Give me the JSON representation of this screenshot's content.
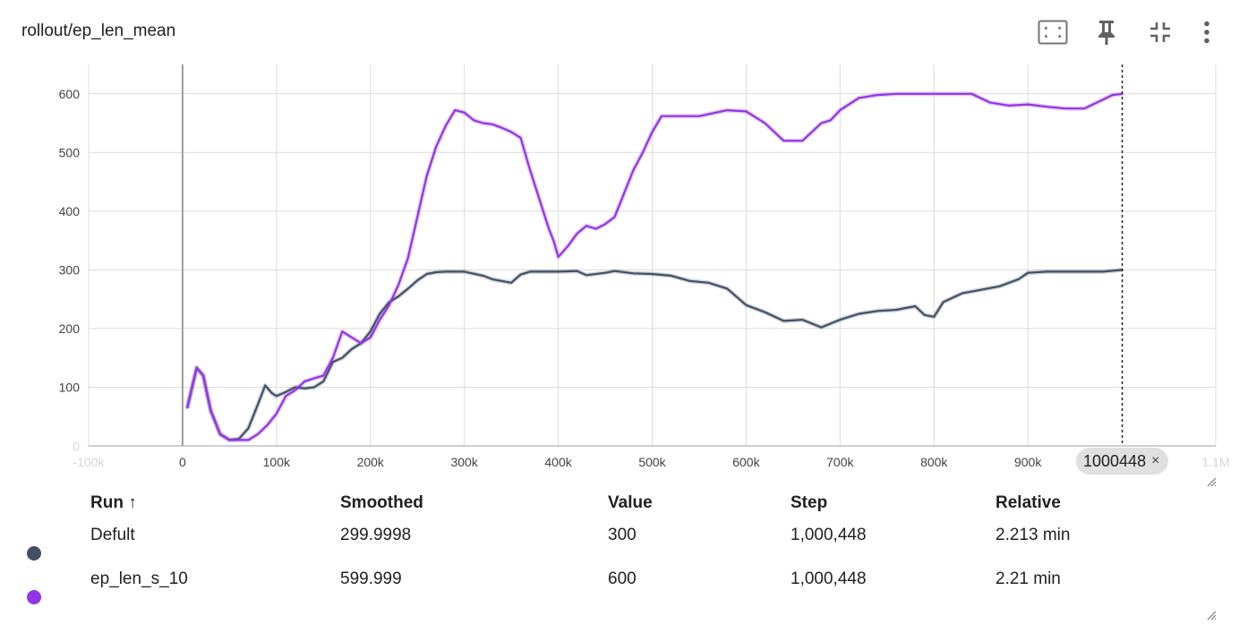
{
  "card": {
    "title": "rollout/ep_len_mean",
    "toolbar": [
      {
        "name": "fit-domain-icon"
      },
      {
        "name": "pin-icon"
      },
      {
        "name": "collapse-icon"
      },
      {
        "name": "more-vert-icon"
      }
    ]
  },
  "step_chip": {
    "label": "1000448",
    "close": "×"
  },
  "table": {
    "headers": {
      "run": "Run ↑",
      "smoothed": "Smoothed",
      "value": "Value",
      "step": "Step",
      "relative": "Relative"
    },
    "rows": [
      {
        "run": "Defult",
        "smoothed": "299.9998",
        "value": "300",
        "step": "1,000,448",
        "relative": "2.213 min",
        "color": "#425066"
      },
      {
        "run": "ep_len_s_10",
        "smoothed": "599.999",
        "value": "600",
        "step": "1,000,448",
        "relative": "2.21 min",
        "color": "#9334e6"
      }
    ]
  },
  "chart_data": {
    "type": "line",
    "title": "rollout/ep_len_mean",
    "xlabel": "",
    "ylabel": "",
    "xlim": [
      -100000,
      1100000
    ],
    "ylim": [
      0,
      650
    ],
    "grid": true,
    "x_ticks": [
      0,
      100000,
      200000,
      300000,
      400000,
      500000,
      600000,
      700000,
      800000,
      900000
    ],
    "x_tick_labels": [
      "0",
      "100k",
      "200k",
      "300k",
      "400k",
      "500k",
      "600k",
      "700k",
      "800k",
      "900k"
    ],
    "x_tick_faint": [
      {
        "value": -100000,
        "label": "-100k"
      },
      {
        "value": 1100000,
        "label": "1.1M"
      }
    ],
    "y_ticks": [
      100,
      200,
      300,
      400,
      500,
      600
    ],
    "y_tick_labels": [
      "100",
      "200",
      "300",
      "400",
      "500",
      "600"
    ],
    "y_tick_faint": [
      {
        "value": 0,
        "label": "0"
      }
    ],
    "cursor_step": 1000448,
    "series": [
      {
        "name": "Defult",
        "color": "#425066",
        "x": [
          5000,
          15000,
          22000,
          30000,
          40000,
          50000,
          60000,
          70000,
          80000,
          88000,
          95000,
          100000,
          110000,
          120000,
          130000,
          140000,
          150000,
          160000,
          170000,
          180000,
          190000,
          200000,
          210000,
          220000,
          230000,
          240000,
          250000,
          260000,
          270000,
          280000,
          290000,
          300000,
          320000,
          330000,
          350000,
          360000,
          370000,
          380000,
          400000,
          420000,
          430000,
          450000,
          460000,
          480000,
          500000,
          520000,
          540000,
          560000,
          580000,
          600000,
          620000,
          640000,
          660000,
          680000,
          700000,
          720000,
          740000,
          760000,
          780000,
          790000,
          800000,
          810000,
          830000,
          850000,
          870000,
          890000,
          900000,
          920000,
          940000,
          960000,
          980000,
          1000448
        ],
        "values": [
          65,
          133,
          120,
          60,
          20,
          10,
          12,
          30,
          70,
          103,
          90,
          85,
          92,
          100,
          98,
          100,
          110,
          143,
          150,
          165,
          175,
          195,
          225,
          245,
          255,
          268,
          282,
          293,
          296,
          297,
          297,
          297,
          290,
          284,
          278,
          292,
          297,
          297,
          297,
          298,
          291,
          295,
          298,
          294,
          293,
          290,
          281,
          278,
          268,
          240,
          228,
          213,
          215,
          202,
          215,
          225,
          230,
          232,
          238,
          223,
          220,
          245,
          260,
          266,
          272,
          284,
          295,
          297,
          297,
          297,
          297,
          300
        ]
      },
      {
        "name": "ep_len_s_10",
        "color": "#9334e6",
        "x": [
          5000,
          15000,
          22000,
          30000,
          40000,
          50000,
          60000,
          70000,
          80000,
          90000,
          100000,
          110000,
          120000,
          130000,
          140000,
          150000,
          160000,
          170000,
          180000,
          190000,
          200000,
          210000,
          220000,
          230000,
          240000,
          250000,
          260000,
          270000,
          280000,
          290000,
          300000,
          310000,
          320000,
          330000,
          340000,
          350000,
          360000,
          370000,
          380000,
          390000,
          395000,
          400000,
          410000,
          420000,
          430000,
          440000,
          450000,
          460000,
          470000,
          480000,
          490000,
          500000,
          510000,
          530000,
          550000,
          580000,
          600000,
          620000,
          640000,
          660000,
          680000,
          690000,
          700000,
          720000,
          740000,
          760000,
          780000,
          800000,
          840000,
          860000,
          880000,
          900000,
          920000,
          940000,
          960000,
          980000,
          990000,
          1000448
        ],
        "values": [
          65,
          133,
          120,
          60,
          20,
          10,
          10,
          10,
          20,
          35,
          55,
          85,
          95,
          110,
          115,
          120,
          150,
          195,
          185,
          175,
          185,
          215,
          240,
          275,
          320,
          390,
          460,
          510,
          545,
          572,
          568,
          555,
          550,
          548,
          542,
          535,
          525,
          470,
          420,
          370,
          350,
          322,
          340,
          362,
          375,
          370,
          378,
          390,
          430,
          470,
          500,
          535,
          562,
          562,
          562,
          572,
          570,
          550,
          520,
          520,
          550,
          555,
          572,
          593,
          598,
          600,
          600,
          600,
          600,
          585,
          580,
          582,
          578,
          575,
          575,
          590,
          598,
          600
        ]
      }
    ]
  }
}
